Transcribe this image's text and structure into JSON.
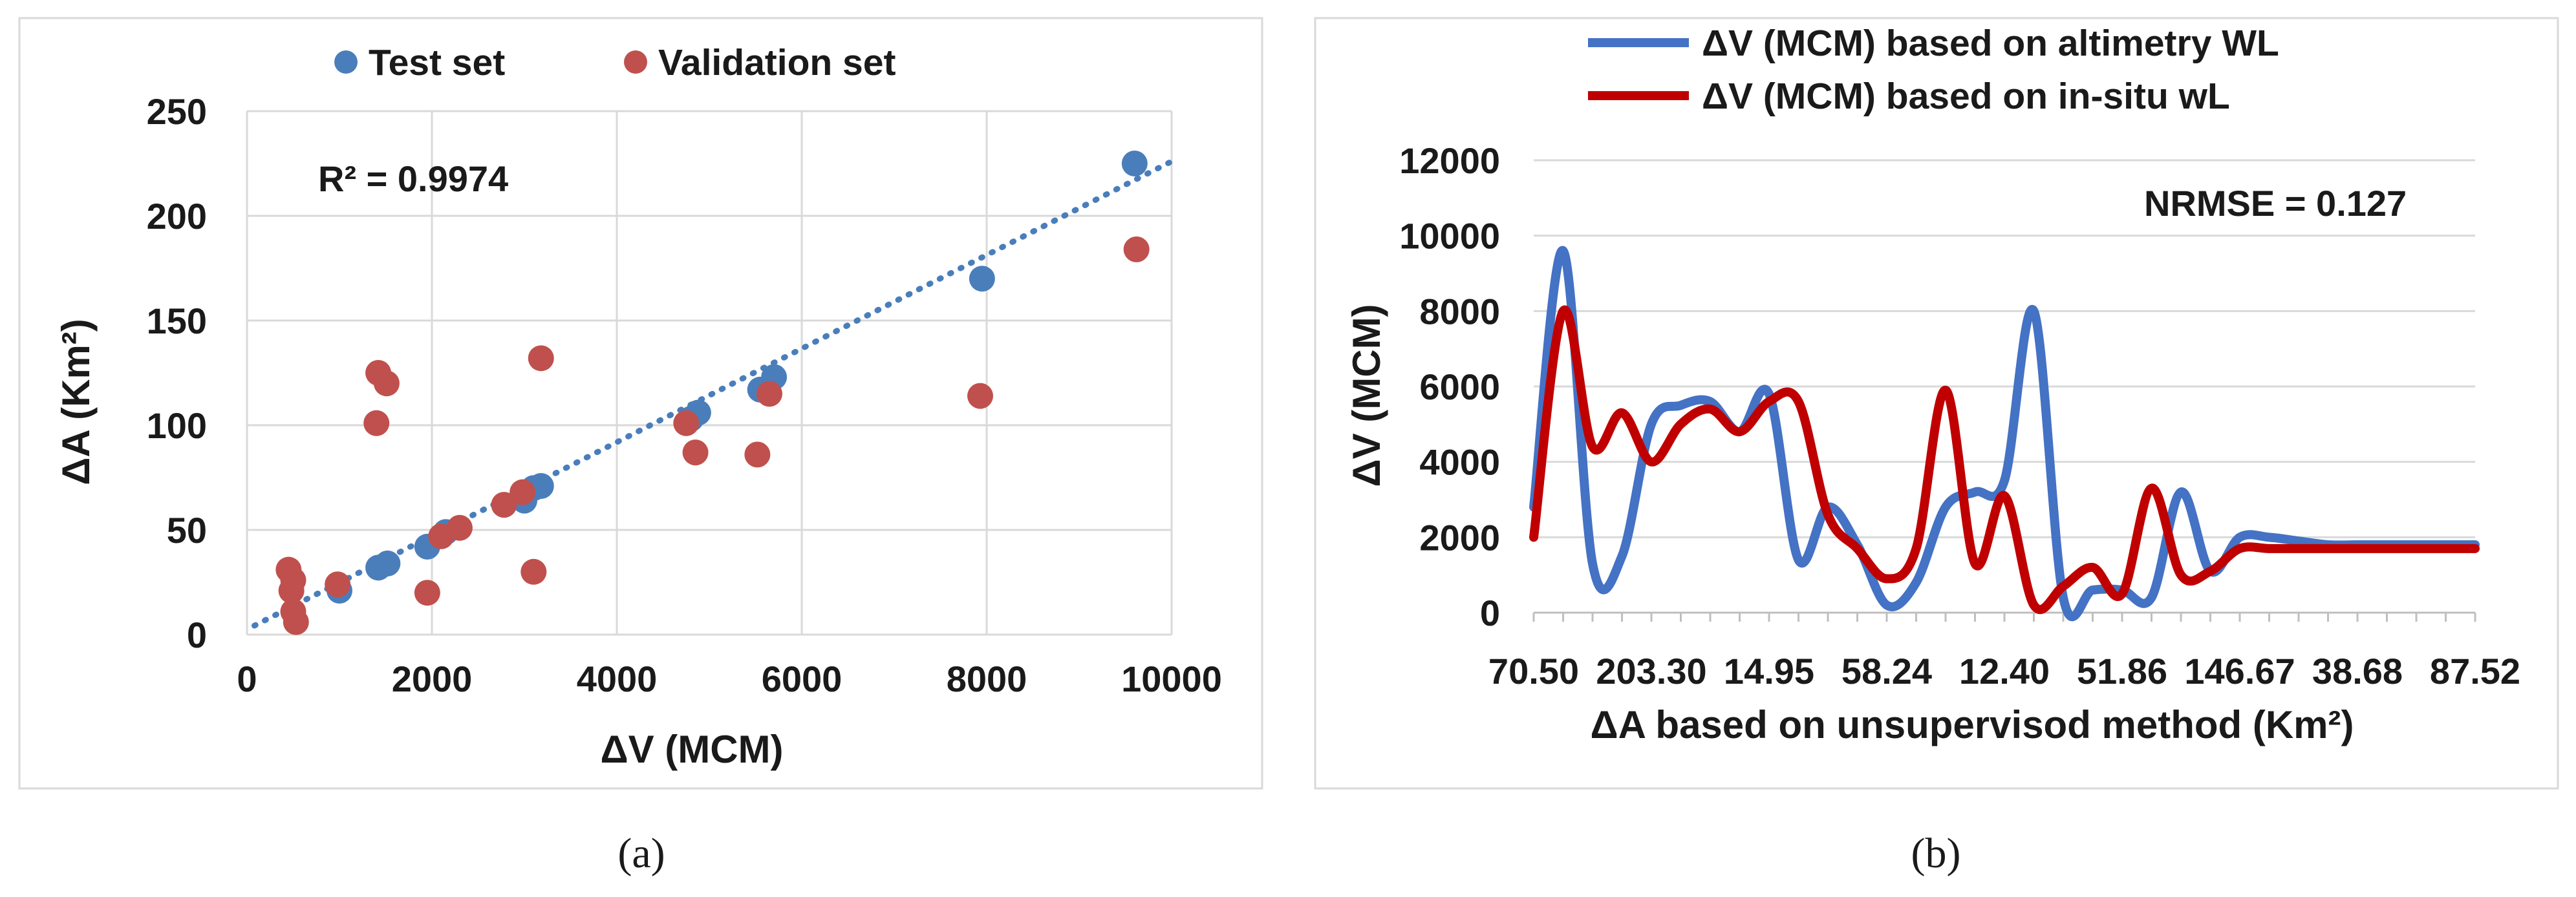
{
  "chart_data": [
    {
      "type": "scatter",
      "panel_label": "(a)",
      "xlabel": "ΔV (MCM)",
      "ylabel": "ΔA (Km²)",
      "xlim": [
        0,
        10000
      ],
      "ylim": [
        0,
        250
      ],
      "x_ticks": [
        "0",
        "2000",
        "4000",
        "6000",
        "8000",
        "10000"
      ],
      "y_ticks": [
        "0",
        "50",
        "100",
        "150",
        "200",
        "250"
      ],
      "grid": true,
      "legend_position": "top",
      "annotation": "R² = 0.9974",
      "trendline": {
        "x_start": 80,
        "x_end": 10000,
        "slope": 0.02235,
        "intercept": 2.5,
        "color": "#4a7ebb",
        "style": "dotted"
      },
      "series": [
        {
          "name": "Test set",
          "color": "#4a7ebb",
          "points": [
            [
              1000,
              21
            ],
            [
              1420,
              32
            ],
            [
              1520,
              34
            ],
            [
              1950,
              42
            ],
            [
              2150,
              49
            ],
            [
              3000,
              64
            ],
            [
              3100,
              70
            ],
            [
              3180,
              71
            ],
            [
              4800,
              103
            ],
            [
              4880,
              106
            ],
            [
              5550,
              117
            ],
            [
              5700,
              123
            ],
            [
              7950,
              170
            ],
            [
              9600,
              225
            ]
          ]
        },
        {
          "name": "Validation set",
          "color": "#c0504d",
          "points": [
            [
              450,
              31
            ],
            [
              480,
              21
            ],
            [
              500,
              26
            ],
            [
              500,
              11
            ],
            [
              530,
              6
            ],
            [
              980,
              24
            ],
            [
              1400,
              101
            ],
            [
              1420,
              125
            ],
            [
              1510,
              120
            ],
            [
              1950,
              20
            ],
            [
              2100,
              47
            ],
            [
              2300,
              51
            ],
            [
              2780,
              62
            ],
            [
              2980,
              68
            ],
            [
              3100,
              30
            ],
            [
              3180,
              132
            ],
            [
              4750,
              101
            ],
            [
              4850,
              87
            ],
            [
              5520,
              86
            ],
            [
              5650,
              115
            ],
            [
              7930,
              114
            ],
            [
              9620,
              184
            ]
          ]
        }
      ]
    },
    {
      "type": "line",
      "panel_label": "(b)",
      "xlabel": "ΔA based on unsupervisod method (Km²)",
      "ylabel": "ΔV (MCM)",
      "ylim": [
        0,
        12000
      ],
      "y_ticks": [
        "0",
        "2000",
        "4000",
        "6000",
        "8000",
        "10000",
        "12000"
      ],
      "x_tick_labels": [
        "70.50",
        "203.30",
        "14.95",
        "58.24",
        "12.40",
        "51.86",
        "146.67",
        "38.68",
        "87.52"
      ],
      "grid": true,
      "legend_position": "top",
      "annotation": "NRMSE = 0.127",
      "x": [
        0,
        1,
        2,
        3,
        4,
        5,
        6,
        7,
        8,
        9,
        10,
        11,
        12,
        13,
        14,
        15,
        16,
        17,
        18,
        19,
        20,
        21,
        22,
        23,
        24,
        25,
        26,
        27,
        28,
        29,
        30,
        31,
        32
      ],
      "series": [
        {
          "name": "ΔV (MCM) based on altimetry WL",
          "color": "#4472c4",
          "values": [
            2800,
            9600,
            1300,
            1500,
            5000,
            5500,
            5600,
            4800,
            5800,
            1400,
            2800,
            1800,
            200,
            800,
            2800,
            3200,
            3500,
            8000,
            400,
            600,
            600,
            400,
            3200,
            1100,
            2000,
            2000,
            1900,
            1800,
            1800,
            1800,
            1800,
            1800,
            1800
          ]
        },
        {
          "name": "ΔV (MCM) based on in-situ wL",
          "color": "#c00000",
          "values": [
            2000,
            8000,
            4400,
            5300,
            4000,
            5000,
            5400,
            4800,
            5600,
            5600,
            2600,
            1700,
            900,
            1700,
            5900,
            1300,
            3100,
            200,
            700,
            1200,
            500,
            3300,
            1000,
            1100,
            1700,
            1700,
            1700,
            1700,
            1700,
            1700,
            1700,
            1700,
            1700
          ]
        }
      ]
    }
  ]
}
